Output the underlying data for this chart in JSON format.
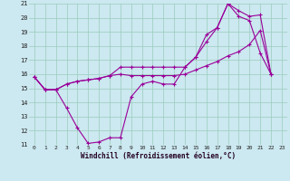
{
  "xlabel": "Windchill (Refroidissement éolien,°C)",
  "bg_color": "#cce8f0",
  "line_color": "#990099",
  "grid_color": "#99ccbb",
  "xlim": [
    -0.5,
    23.5
  ],
  "ylim": [
    11,
    21
  ],
  "yticks": [
    11,
    12,
    13,
    14,
    15,
    16,
    17,
    18,
    19,
    20,
    21
  ],
  "xticks": [
    0,
    1,
    2,
    3,
    4,
    5,
    6,
    7,
    8,
    9,
    10,
    11,
    12,
    13,
    14,
    15,
    16,
    17,
    18,
    19,
    20,
    21,
    22,
    23
  ],
  "line1_x": [
    0,
    1,
    2,
    3,
    4,
    5,
    6,
    7,
    8,
    9,
    10,
    11,
    12,
    13,
    14,
    15,
    16,
    17,
    18,
    19,
    20,
    21,
    22
  ],
  "line1_y": [
    15.8,
    14.9,
    14.9,
    13.6,
    12.2,
    11.1,
    11.2,
    11.5,
    11.5,
    14.4,
    15.3,
    15.5,
    15.3,
    15.3,
    16.5,
    17.2,
    18.8,
    19.3,
    21.0,
    20.1,
    19.8,
    17.5,
    16.0
  ],
  "line2_x": [
    0,
    1,
    2,
    3,
    4,
    5,
    6,
    7,
    8,
    9,
    10,
    11,
    12,
    13,
    14,
    15,
    16,
    17,
    18,
    19,
    20,
    21,
    22
  ],
  "line2_y": [
    15.8,
    14.9,
    14.9,
    15.3,
    15.5,
    15.6,
    15.7,
    15.9,
    16.5,
    16.5,
    16.5,
    16.5,
    16.5,
    16.5,
    16.5,
    17.2,
    18.3,
    19.3,
    21.0,
    20.5,
    20.1,
    20.2,
    16.0
  ],
  "line3_x": [
    0,
    1,
    2,
    3,
    4,
    5,
    6,
    7,
    8,
    9,
    10,
    11,
    12,
    13,
    14,
    15,
    16,
    17,
    18,
    19,
    20,
    21,
    22
  ],
  "line3_y": [
    15.8,
    14.9,
    14.9,
    15.3,
    15.5,
    15.6,
    15.7,
    15.9,
    16.0,
    15.9,
    15.9,
    15.9,
    15.9,
    15.9,
    16.0,
    16.3,
    16.6,
    16.9,
    17.3,
    17.6,
    18.1,
    19.1,
    16.0
  ]
}
